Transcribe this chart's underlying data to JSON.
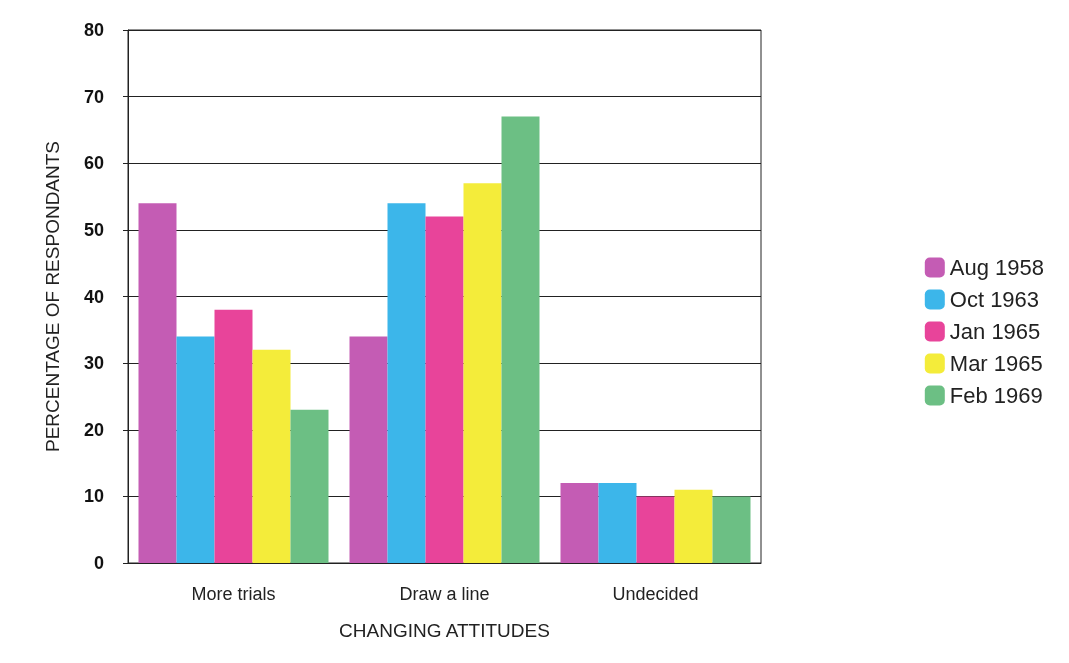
{
  "chart_data": {
    "type": "bar",
    "xlabel": "CHANGING ATTITUDES",
    "ylabel": "PERCENTAGE OF RESPONDANTS",
    "categories": [
      "More trials",
      "Draw a line",
      "Undecided"
    ],
    "series": [
      {
        "name": "Aug 1958",
        "color": "#c45cb4",
        "values": [
          54,
          34,
          12
        ]
      },
      {
        "name": "Oct 1963",
        "color": "#3cb6ea",
        "values": [
          34,
          54,
          12
        ]
      },
      {
        "name": "Jan 1965",
        "color": "#e8449a",
        "values": [
          38,
          52,
          10
        ]
      },
      {
        "name": "Mar 1965",
        "color": "#f4ec3a",
        "values": [
          32,
          57,
          11
        ]
      },
      {
        "name": "Feb 1969",
        "color": "#6cbf84",
        "values": [
          23,
          67,
          10
        ]
      }
    ],
    "ylim": [
      0,
      80
    ],
    "yticks": [
      0,
      10,
      20,
      30,
      40,
      50,
      60,
      70,
      80
    ],
    "grid": "y",
    "legend": "right"
  }
}
